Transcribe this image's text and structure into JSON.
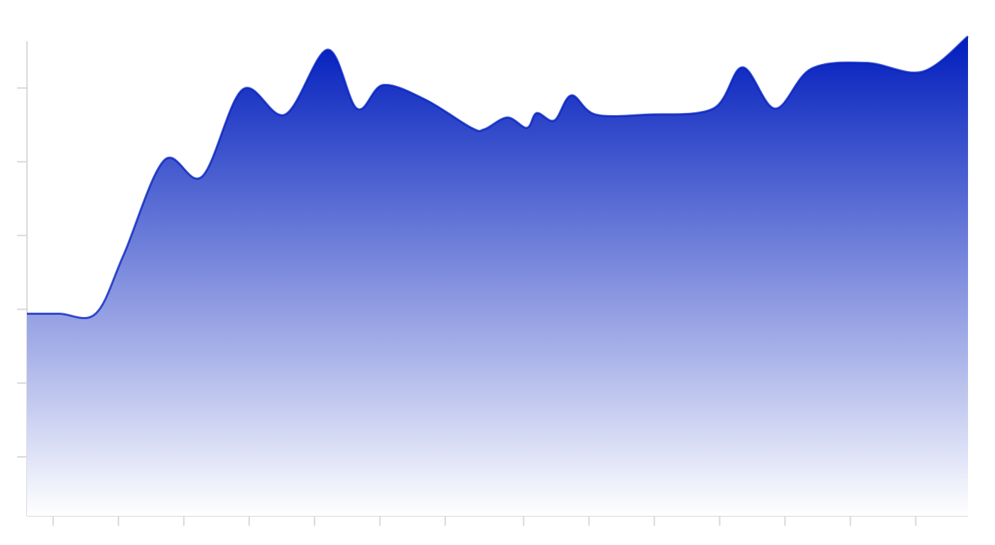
{
  "chart_data": {
    "type": "area",
    "title": "",
    "xlabel": "",
    "ylabel": "",
    "grid": false,
    "legend": "none",
    "colors": {
      "line": "#001dbd",
      "fill_top": "#001dbd",
      "fill_bottom": "#ffffff",
      "axis": "#d9d9d9"
    },
    "xlim": [
      0,
      1440
    ],
    "ylim": [
      0,
      340
    ],
    "x_ticks": [
      40,
      140,
      240,
      340,
      440,
      540,
      640,
      760,
      860,
      960,
      1060,
      1160,
      1260,
      1360
    ],
    "y_ticks": [
      40,
      90,
      140,
      190,
      240,
      290
    ],
    "series": [
      {
        "x": [
          0,
          50,
          105,
          148,
          210,
          268,
          330,
          395,
          460,
          505,
          545,
          610,
          680,
          700,
          735,
          765,
          780,
          807,
          833,
          870,
          950,
          1050,
          1095,
          1145,
          1200,
          1285,
          1370,
          1440
        ],
        "y": [
          137,
          137,
          137,
          177,
          241,
          230,
          289,
          272,
          316,
          276,
          292,
          282,
          263,
          262,
          270,
          263,
          273,
          268,
          285,
          272,
          272,
          276,
          304,
          276,
          303,
          307,
          301,
          325
        ]
      }
    ]
  }
}
